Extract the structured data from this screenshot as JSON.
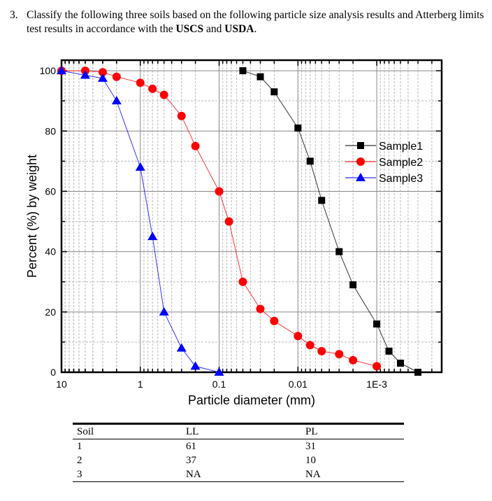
{
  "question": {
    "number": "3.",
    "text_before": "Classify the following three soils based on the following particle size analysis results and Atterberg limits test results in accordance with the ",
    "bold1": "USCS",
    "mid": " and ",
    "bold2": "USDA",
    "end": "."
  },
  "chart_data": {
    "type": "line",
    "xlabel": "Particle diameter (mm)",
    "ylabel": "Percent (%) by weight",
    "x_scale": "log",
    "x_reversed": true,
    "xlim": [
      10,
      0.00015
    ],
    "ylim": [
      0,
      103.5
    ],
    "x_ticks": [
      {
        "v": 10,
        "label": "10"
      },
      {
        "v": 1,
        "label": "1"
      },
      {
        "v": 0.1,
        "label": "0.1"
      },
      {
        "v": 0.01,
        "label": "0.01"
      },
      {
        "v": 0.001,
        "label": "1E-3"
      }
    ],
    "y_ticks": [
      0,
      20,
      40,
      60,
      80,
      100
    ],
    "grid": true,
    "legend_placement": "right",
    "series": [
      {
        "name": "Sample1",
        "color": "#000000",
        "marker": "square",
        "x": [
          0.05,
          0.03,
          0.02,
          0.01,
          0.007,
          0.005,
          0.003,
          0.002,
          0.001,
          0.0007,
          0.0005,
          0.0003
        ],
        "y": [
          100,
          98,
          93,
          81,
          70,
          57,
          40,
          29,
          16,
          7,
          3,
          0
        ]
      },
      {
        "name": "Sample2",
        "color": "#ff0000",
        "marker": "circle",
        "x": [
          10,
          5,
          3,
          2,
          1,
          0.7,
          0.5,
          0.3,
          0.2,
          0.1,
          0.075,
          0.05,
          0.03,
          0.02,
          0.01,
          0.007,
          0.005,
          0.003,
          0.002,
          0.001
        ],
        "y": [
          100,
          100,
          99.5,
          98,
          96,
          94,
          92,
          85,
          75,
          60,
          50,
          30,
          21,
          17,
          12,
          9,
          7,
          6,
          4,
          2
        ]
      },
      {
        "name": "Sample3",
        "color": "#0000ff",
        "marker": "triangle",
        "x": [
          10,
          5,
          3,
          2,
          1,
          0.7,
          0.5,
          0.3,
          0.2,
          0.1
        ],
        "y": [
          100,
          98.5,
          97.5,
          90,
          68,
          45,
          20,
          8,
          2,
          0
        ]
      }
    ]
  },
  "table": {
    "headers": [
      "Soil",
      "LL",
      "PL"
    ],
    "rows": [
      [
        "1",
        "61",
        "31"
      ],
      [
        "2",
        "37",
        "10"
      ],
      [
        "3",
        "NA",
        "NA"
      ]
    ]
  }
}
